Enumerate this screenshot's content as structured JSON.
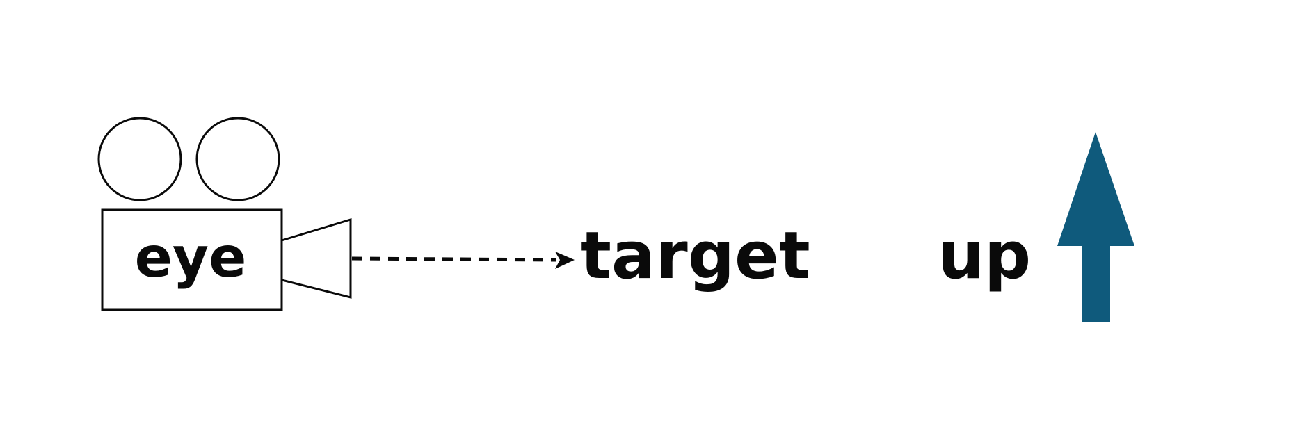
{
  "labels": {
    "eye": "eye",
    "target": "target",
    "up": "up"
  },
  "colors": {
    "ink": "#0a0a0a",
    "up_arrow": "#0f5a7c",
    "background": "#ffffff"
  },
  "icons": {
    "camera": "movie-camera-icon",
    "direction": "dashed-arrow-icon",
    "up": "up-arrow-icon"
  }
}
